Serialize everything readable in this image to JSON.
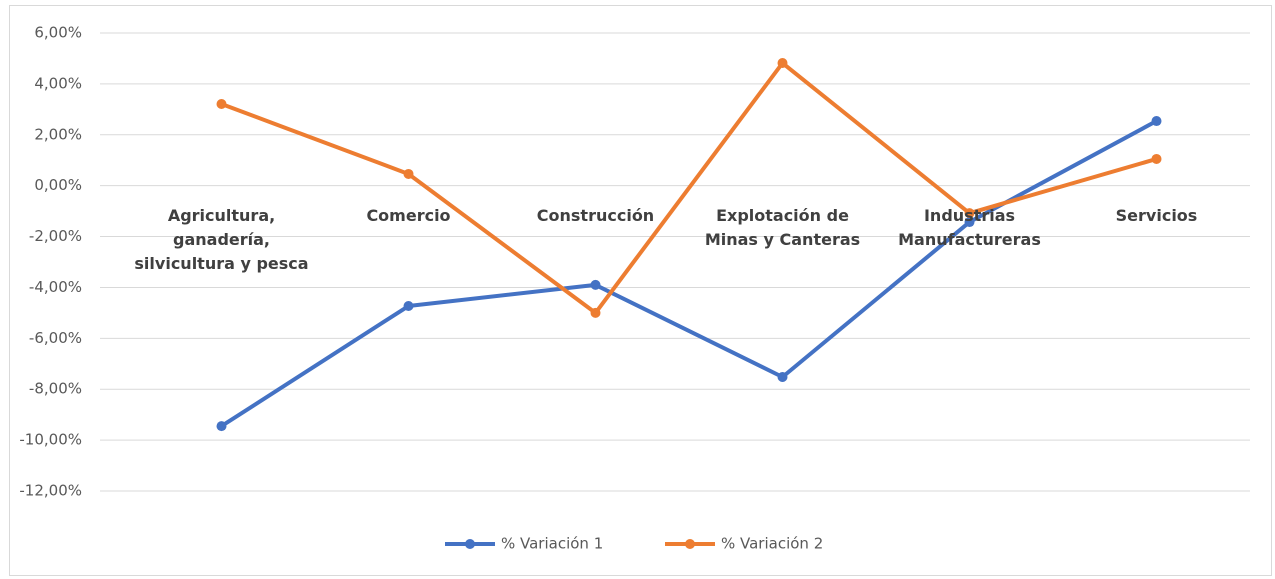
{
  "chart_data": {
    "type": "line",
    "categories": [
      "Agricultura, ganadería, silvicultura y pesca",
      "Comercio",
      "Construcción",
      "Explotación de Minas y Canteras",
      "Industrias Manufactureras",
      "Servicios"
    ],
    "series": [
      {
        "name": "% Variación 1",
        "color": "#4472c4",
        "values": [
          -9.45,
          -4.73,
          -3.9,
          -7.52,
          -1.43,
          2.54
        ]
      },
      {
        "name": "% Variación 2",
        "color": "#ed7d31",
        "values": [
          3.21,
          0.46,
          -5.0,
          4.82,
          -1.08,
          1.05
        ]
      }
    ],
    "ylim": [
      -12,
      6
    ],
    "yticks": [
      {
        "value": -12,
        "label": "-12,00%"
      },
      {
        "value": -10,
        "label": "-10,00%"
      },
      {
        "value": -8,
        "label": "-8,00%"
      },
      {
        "value": -6,
        "label": "-6,00%"
      },
      {
        "value": -4,
        "label": "-4,00%"
      },
      {
        "value": -2,
        "label": "-2,00%"
      },
      {
        "value": 0,
        "label": "0,00%"
      },
      {
        "value": 2,
        "label": "2,00%"
      },
      {
        "value": 4,
        "label": "4,00%"
      },
      {
        "value": 6,
        "label": "6,00%"
      }
    ],
    "grid": true,
    "legend": "bottom"
  }
}
